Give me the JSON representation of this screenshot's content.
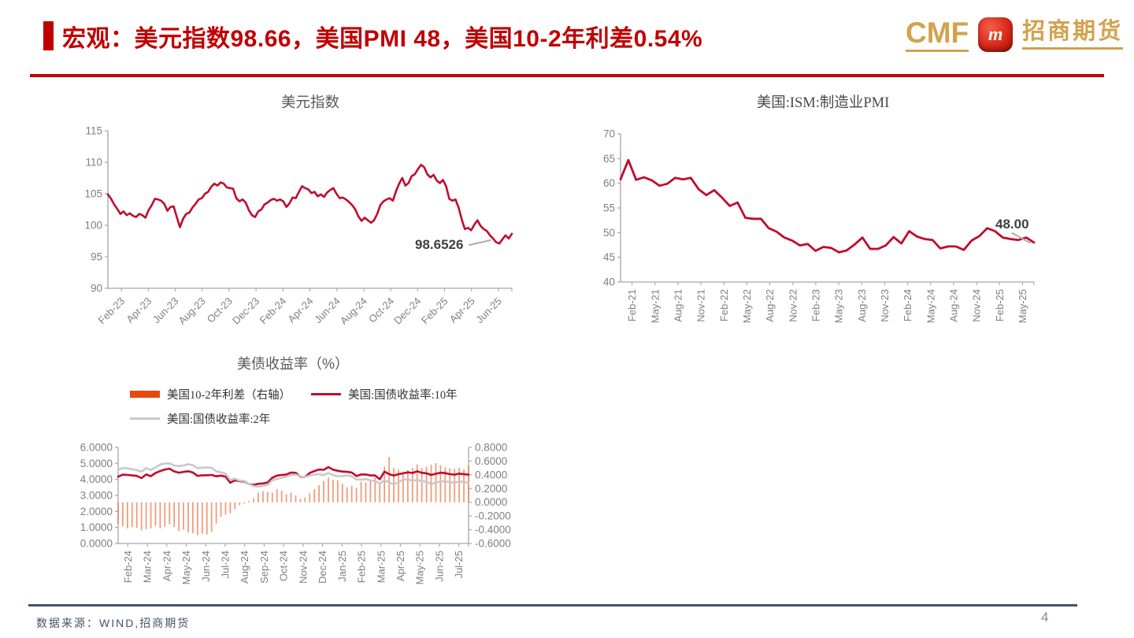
{
  "header": {
    "title": "宏观：美元指数98.66，美国PMI 48，美国10-2年利差0.54%",
    "logo": {
      "cmf_text": "CMF",
      "badge_letter": "m",
      "brand_text": "招商期货"
    }
  },
  "footer": {
    "source_text": "数据来源：WIND,招商期货",
    "page_number": "4"
  },
  "colors": {
    "accent_red": "#C00000",
    "line_red": "#C00C2D",
    "line_gray": "#C9C9C9",
    "bar_orange": "#ED7C4E",
    "legend_orange": "#E8490D",
    "gold": "#D2A24E",
    "footer_slate": "#44546A",
    "axis_gray": "#A6A6A6",
    "label_gray": "#7F7F7F",
    "title_gray": "#595959",
    "annotation_gray": "#3F3F3F"
  },
  "chart_data": [
    {
      "id": "dxy",
      "type": "line",
      "title": "美元指数",
      "x_labels": [
        "Feb-23",
        "Apr-23",
        "Jun-23",
        "Aug-23",
        "Oct-23",
        "Dec-23",
        "Feb-24",
        "Apr-24",
        "Jun-24",
        "Aug-24",
        "Oct-24",
        "Dec-24",
        "Feb-25",
        "Apr-25",
        "Jun-25"
      ],
      "ylim": [
        90,
        115
      ],
      "ystep": 5,
      "y_decimals": 0,
      "grid": false,
      "legend_position": "none",
      "series": [
        {
          "name": "美元指数",
          "type": "line",
          "color": "#C00C2D",
          "width": 2.6,
          "values": [
            104.9,
            104.2,
            103.3,
            102.6,
            101.8,
            102.2,
            101.6,
            101.9,
            101.5,
            101.3,
            101.8,
            101.6,
            101.2,
            102.4,
            103.2,
            104.2,
            104.1,
            103.9,
            103.4,
            102.3,
            102.9,
            103.0,
            101.3,
            99.7,
            101.0,
            101.8,
            102.0,
            102.8,
            103.4,
            104.1,
            104.3,
            105.0,
            105.3,
            106.1,
            106.6,
            106.3,
            106.8,
            106.6,
            106.0,
            105.9,
            105.8,
            104.3,
            103.8,
            104.1,
            103.6,
            102.4,
            101.6,
            101.3,
            102.2,
            102.5,
            103.3,
            103.6,
            104.0,
            104.2,
            103.9,
            104.1,
            103.8,
            102.9,
            103.5,
            104.4,
            104.3,
            105.3,
            106.2,
            105.9,
            105.7,
            105.1,
            105.3,
            104.6,
            104.9,
            104.5,
            105.2,
            105.6,
            105.9,
            105.0,
            104.3,
            104.4,
            104.1,
            103.7,
            103.2,
            102.5,
            101.4,
            100.7,
            101.2,
            100.8,
            100.4,
            100.8,
            101.8,
            103.2,
            103.8,
            104.1,
            104.3,
            103.9,
            105.4,
            106.6,
            107.5,
            106.3,
            106.7,
            107.8,
            108.1,
            108.9,
            109.6,
            109.2,
            108.1,
            107.6,
            108.0,
            107.1,
            106.7,
            107.2,
            106.2,
            104.2,
            103.9,
            104.1,
            102.8,
            100.9,
            99.4,
            99.6,
            99.2,
            100.1,
            100.8,
            99.9,
            99.4,
            99.1,
            98.4,
            97.9,
            97.3,
            97.1,
            97.8,
            98.4,
            97.9,
            98.65
          ]
        }
      ],
      "annotation": {
        "text": "98.6526"
      }
    },
    {
      "id": "pmi",
      "type": "line",
      "title": "美国:ISM:制造业PMI",
      "x_labels": [
        "Feb-21",
        "May-21",
        "Aug-21",
        "Nov-21",
        "Feb-22",
        "May-22",
        "Aug-22",
        "Nov-22",
        "Feb-23",
        "May-23",
        "Aug-23",
        "Nov-23",
        "Feb-24",
        "May-24",
        "Aug-24",
        "Nov-24",
        "Feb-25",
        "May-25"
      ],
      "ylim": [
        40,
        70
      ],
      "ystep": 5,
      "y_decimals": 0,
      "grid": false,
      "legend_position": "none",
      "series": [
        {
          "name": "美国:ISM:制造业PMI",
          "type": "line",
          "color": "#C00C2D",
          "width": 2.8,
          "values": [
            60.8,
            64.7,
            60.7,
            61.2,
            60.6,
            59.5,
            59.9,
            61.1,
            60.8,
            61.1,
            58.8,
            57.6,
            58.6,
            57.1,
            55.4,
            56.1,
            53.0,
            52.8,
            52.8,
            50.9,
            50.2,
            49.0,
            48.4,
            47.4,
            47.7,
            46.3,
            47.1,
            46.9,
            46.0,
            46.4,
            47.6,
            49.0,
            46.7,
            46.7,
            47.4,
            49.1,
            47.8,
            50.3,
            49.2,
            48.7,
            48.5,
            46.8,
            47.2,
            47.2,
            46.5,
            48.4,
            49.3,
            50.9,
            50.3,
            49.0,
            48.7,
            48.5,
            49.0,
            48.0
          ]
        }
      ],
      "annotation": {
        "text": "48.00"
      }
    },
    {
      "id": "yld",
      "type": "mixed",
      "title": "美债收益率（%）",
      "x_labels": [
        "Feb-24",
        "Mar-24",
        "Apr-24",
        "May-24",
        "Jun-24",
        "Jul-24",
        "Aug-24",
        "Sep-24",
        "Oct-24",
        "Nov-24",
        "Dec-24",
        "Jan-25",
        "Feb-25",
        "Mar-25",
        "Apr-25",
        "May-25",
        "Jun-25",
        "Jul-25"
      ],
      "ylim": [
        0,
        6
      ],
      "ystep": 1,
      "y_decimals": 4,
      "y2lim": [
        -0.6,
        0.8
      ],
      "y2step": 0.2,
      "y2_decimals": 4,
      "grid": false,
      "legend_position": "top",
      "series": [
        {
          "name": "美国10-2年利差（右轴）",
          "type": "bar",
          "axis": "y2",
          "color": "#ED7C4E",
          "legend_color": "#E8490D",
          "values": [
            -0.32,
            -0.35,
            -0.38,
            -0.36,
            -0.37,
            -0.41,
            -0.39,
            -0.38,
            -0.34,
            -0.38,
            -0.36,
            -0.32,
            -0.36,
            -0.42,
            -0.4,
            -0.44,
            -0.45,
            -0.48,
            -0.46,
            -0.47,
            -0.43,
            -0.31,
            -0.21,
            -0.18,
            -0.16,
            -0.1,
            -0.04,
            -0.02,
            0.02,
            0.06,
            0.14,
            0.16,
            0.15,
            0.14,
            0.19,
            0.17,
            0.12,
            0.14,
            0.1,
            0.05,
            0.07,
            0.13,
            0.19,
            0.25,
            0.31,
            0.36,
            0.33,
            0.32,
            0.27,
            0.22,
            0.24,
            0.21,
            0.3,
            0.29,
            0.31,
            0.36,
            0.27,
            0.52,
            0.66,
            0.5,
            0.48,
            0.44,
            0.47,
            0.5,
            0.55,
            0.5,
            0.52,
            0.55,
            0.57,
            0.54,
            0.51,
            0.5,
            0.49,
            0.5,
            0.48,
            0.54
          ]
        },
        {
          "name": "美国:国债收益率:10年",
          "type": "line",
          "color": "#C00C2D",
          "width": 2.6,
          "values": [
            4.17,
            4.3,
            4.28,
            4.25,
            4.22,
            4.08,
            4.31,
            4.2,
            4.4,
            4.52,
            4.62,
            4.67,
            4.5,
            4.42,
            4.47,
            4.51,
            4.43,
            4.22,
            4.26,
            4.26,
            4.28,
            4.19,
            4.24,
            4.17,
            3.79,
            3.94,
            3.89,
            3.87,
            3.71,
            3.66,
            3.73,
            3.75,
            3.81,
            4.1,
            4.24,
            4.28,
            4.31,
            4.43,
            4.41,
            4.17,
            4.15,
            4.4,
            4.52,
            4.62,
            4.6,
            4.77,
            4.61,
            4.54,
            4.49,
            4.47,
            4.43,
            4.21,
            4.31,
            4.31,
            4.25,
            4.25,
            4.01,
            4.49,
            4.33,
            4.24,
            4.33,
            4.38,
            4.44,
            4.4,
            4.51,
            4.41,
            4.38,
            4.28,
            4.35,
            4.42,
            4.39,
            4.33,
            4.3,
            4.36,
            4.33,
            4.3
          ]
        },
        {
          "name": "美国:国债收益率:2年",
          "type": "line",
          "color": "#C9C9C9",
          "width": 2.6,
          "values": [
            4.6,
            4.71,
            4.69,
            4.64,
            4.58,
            4.48,
            4.71,
            4.59,
            4.75,
            4.93,
            4.99,
            5.0,
            4.87,
            4.83,
            4.87,
            4.95,
            4.89,
            4.71,
            4.73,
            4.75,
            4.72,
            4.51,
            4.44,
            4.36,
            3.97,
            4.05,
            3.92,
            3.91,
            3.71,
            3.58,
            3.55,
            3.6,
            3.66,
            3.95,
            4.03,
            4.1,
            4.18,
            4.28,
            4.3,
            4.2,
            4.15,
            4.24,
            4.31,
            4.33,
            4.27,
            4.4,
            4.27,
            4.2,
            4.21,
            4.26,
            4.19,
            4.0,
            3.99,
            4.02,
            3.94,
            3.89,
            3.74,
            3.96,
            3.8,
            3.7,
            3.82,
            3.98,
            4.0,
            3.92,
            3.95,
            3.9,
            3.85,
            3.72,
            3.79,
            3.88,
            3.87,
            3.83,
            3.8,
            3.87,
            3.85,
            3.76
          ]
        }
      ]
    }
  ]
}
